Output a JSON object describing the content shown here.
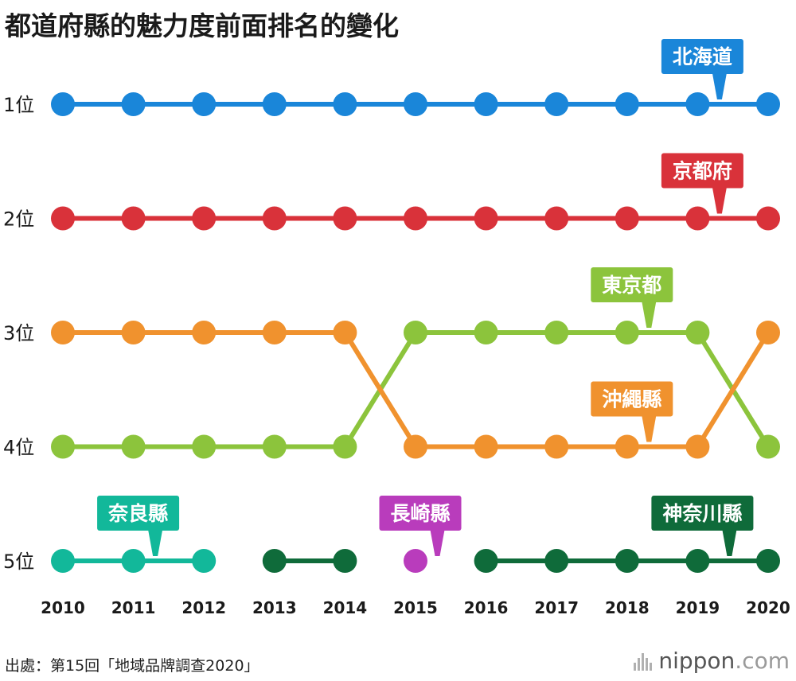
{
  "header": {
    "title": "都道府縣的魅力度前面排名的變化"
  },
  "footer": {
    "source": "出處：第15回「地域品牌調查2020」",
    "brand_name": "nippon",
    "brand_tld": ".com"
  },
  "chart_data": {
    "type": "line",
    "title": "都道府縣的魅力度前面排名的變化",
    "xlabel": "",
    "ylabel": "",
    "x": [
      "2010",
      "2011",
      "2012",
      "2013",
      "2014",
      "2015",
      "2016",
      "2017",
      "2018",
      "2019",
      "2020"
    ],
    "rank_labels": [
      "1位",
      "2位",
      "3位",
      "4位",
      "5位"
    ],
    "ylim": [
      1,
      5
    ],
    "y_inverted": true,
    "grid": false,
    "series": [
      {
        "name": "北海道",
        "color": "#1a86d9",
        "values": [
          1,
          1,
          1,
          1,
          1,
          1,
          1,
          1,
          1,
          1,
          1
        ],
        "label_year": "2019"
      },
      {
        "name": "京都府",
        "color": "#d9323a",
        "values": [
          2,
          2,
          2,
          2,
          2,
          2,
          2,
          2,
          2,
          2,
          2
        ],
        "label_year": "2019"
      },
      {
        "name": "東京都",
        "color": "#8cc43c",
        "values": [
          4,
          4,
          4,
          4,
          4,
          3,
          3,
          3,
          3,
          3,
          4
        ],
        "label_year": "2018"
      },
      {
        "name": "沖繩縣",
        "color": "#f0922e",
        "values": [
          3,
          3,
          3,
          3,
          3,
          4,
          4,
          4,
          4,
          4,
          3
        ],
        "label_year": "2018"
      },
      {
        "name": "奈良縣",
        "color": "#12b89a",
        "values": [
          5,
          5,
          5,
          null,
          null,
          null,
          null,
          null,
          null,
          null,
          null
        ],
        "label_year": "2011"
      },
      {
        "name": "長崎縣",
        "color": "#b93cbc",
        "values": [
          null,
          null,
          null,
          null,
          null,
          5,
          null,
          null,
          null,
          null,
          null
        ],
        "label_year": "2015"
      },
      {
        "name": "神奈川縣",
        "color": "#0f6b3a",
        "values": [
          null,
          null,
          null,
          5,
          5,
          null,
          5,
          5,
          5,
          5,
          5
        ],
        "label_year": "2019"
      }
    ]
  }
}
